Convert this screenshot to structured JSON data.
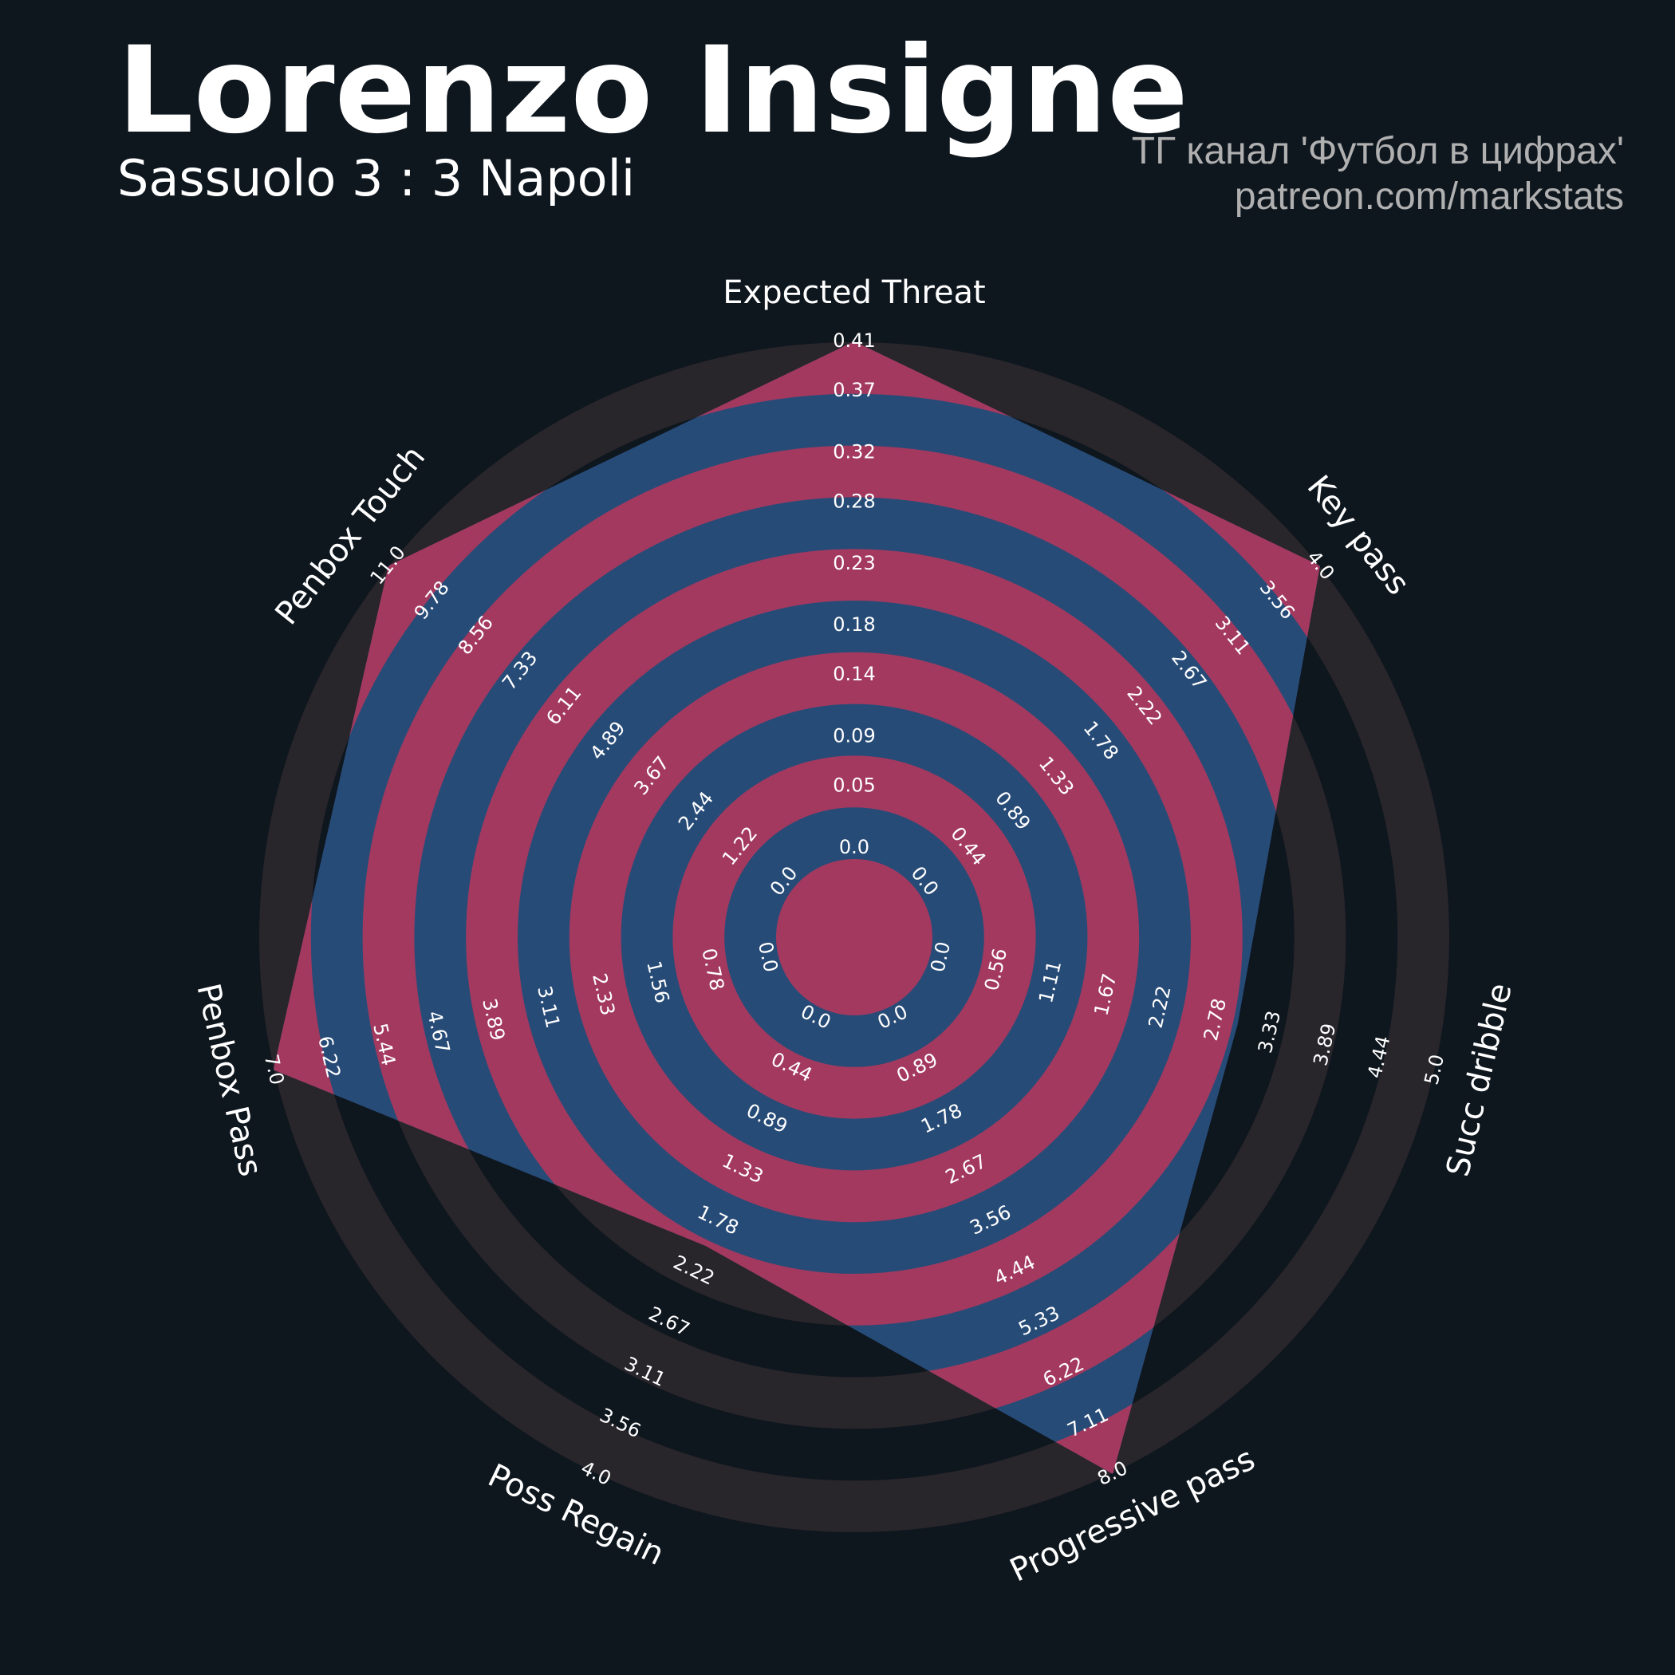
{
  "chart_data": {
    "type": "radar",
    "title": "Lorenzo Insigne",
    "subtitle": "Sassuolo 3 : 3 Napoli",
    "credits": [
      "ТГ канал 'Футбол в цифрах'",
      "patreon.com/markstats"
    ],
    "axes": [
      {
        "name": "Expected Threat",
        "range": [
          0,
          0.41
        ],
        "ticks": [
          {
            "value": 0,
            "label": "0.0"
          },
          0.05,
          0.09,
          0.14,
          0.18,
          0.23,
          0.28,
          0.32,
          0.37,
          0.41
        ]
      },
      {
        "name": "Key pass",
        "range": [
          0,
          4
        ],
        "ticks": [
          {
            "value": 0,
            "label": "0.0"
          },
          0.44,
          0.89,
          1.33,
          1.78,
          2.22,
          2.67,
          3.11,
          3.56,
          {
            "value": 4,
            "label": "4.0"
          }
        ]
      },
      {
        "name": "Succ dribble",
        "range": [
          0,
          5
        ],
        "ticks": [
          {
            "value": 0,
            "label": "0.0"
          },
          0.56,
          1.11,
          1.67,
          2.22,
          2.78,
          3.33,
          3.89,
          4.44,
          {
            "value": 5,
            "label": "5.0"
          }
        ]
      },
      {
        "name": "Progressive pass",
        "range": [
          0,
          8
        ],
        "ticks": [
          {
            "value": 0,
            "label": "0.0"
          },
          0.89,
          1.78,
          2.67,
          3.56,
          4.44,
          5.33,
          6.22,
          7.11,
          {
            "value": 8,
            "label": "8.0"
          }
        ]
      },
      {
        "name": "Poss Regain",
        "range": [
          0,
          4
        ],
        "ticks": [
          {
            "value": 0,
            "label": "0.0"
          },
          0.44,
          0.89,
          1.33,
          1.78,
          2.22,
          2.67,
          3.11,
          3.56,
          {
            "value": 4,
            "label": "4.0"
          }
        ]
      },
      {
        "name": "Penbox Pass",
        "range": [
          0,
          7
        ],
        "ticks": [
          {
            "value": 0,
            "label": "0.0"
          },
          0.78,
          1.56,
          2.33,
          3.11,
          3.89,
          4.67,
          5.44,
          6.22,
          {
            "value": 7,
            "label": "7.0"
          }
        ]
      },
      {
        "name": "Penbox Touch",
        "range": [
          0,
          11
        ],
        "ticks": [
          {
            "value": 0,
            "label": "0.0"
          },
          1.22,
          2.44,
          3.67,
          4.89,
          6.11,
          7.33,
          8.56,
          9.78,
          {
            "value": 11,
            "label": "11.0"
          }
        ]
      }
    ],
    "series": [
      {
        "color": "#274b77",
        "values": [
          0.41,
          4,
          3,
          8,
          2,
          7,
          11
        ]
      }
    ],
    "ring_color": "#a3395f",
    "ring_background": "#28252b"
  }
}
